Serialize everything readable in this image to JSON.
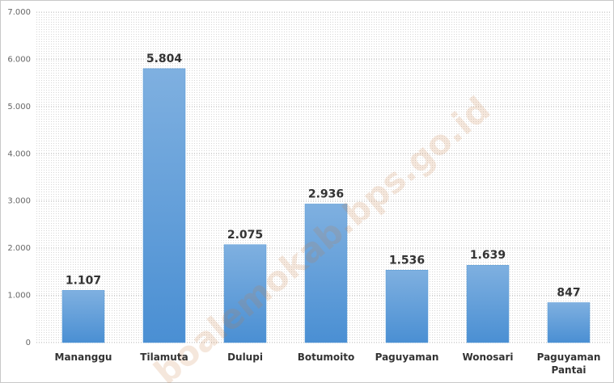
{
  "chart_data": {
    "type": "bar",
    "categories": [
      "Mananggu",
      "Tilamuta",
      "Dulupi",
      "Botumoito",
      "Paguyaman",
      "Wonosari",
      "Paguyaman Pantai"
    ],
    "values": [
      1107,
      5804,
      2075,
      2936,
      1536,
      1639,
      847
    ],
    "value_labels": [
      "1.107",
      "5.804",
      "2.075",
      "2.936",
      "1.536",
      "1.639",
      "847"
    ],
    "color": "#5b9bd5",
    "ylim": [
      0,
      7000
    ],
    "yticks": [
      0,
      {
        "value": 1000,
        "label": "1.000"
      },
      {
        "value": 2000,
        "label": "2.000"
      },
      {
        "value": 3000,
        "label": "3.000"
      },
      {
        "value": 4000,
        "label": "4.000"
      },
      {
        "value": 5000,
        "label": "5.000"
      },
      {
        "value": 6000,
        "label": "6.000"
      },
      {
        "value": 7000,
        "label": "7.000"
      }
    ],
    "grid": true,
    "watermark": "boalemokab.bps.go.id"
  }
}
